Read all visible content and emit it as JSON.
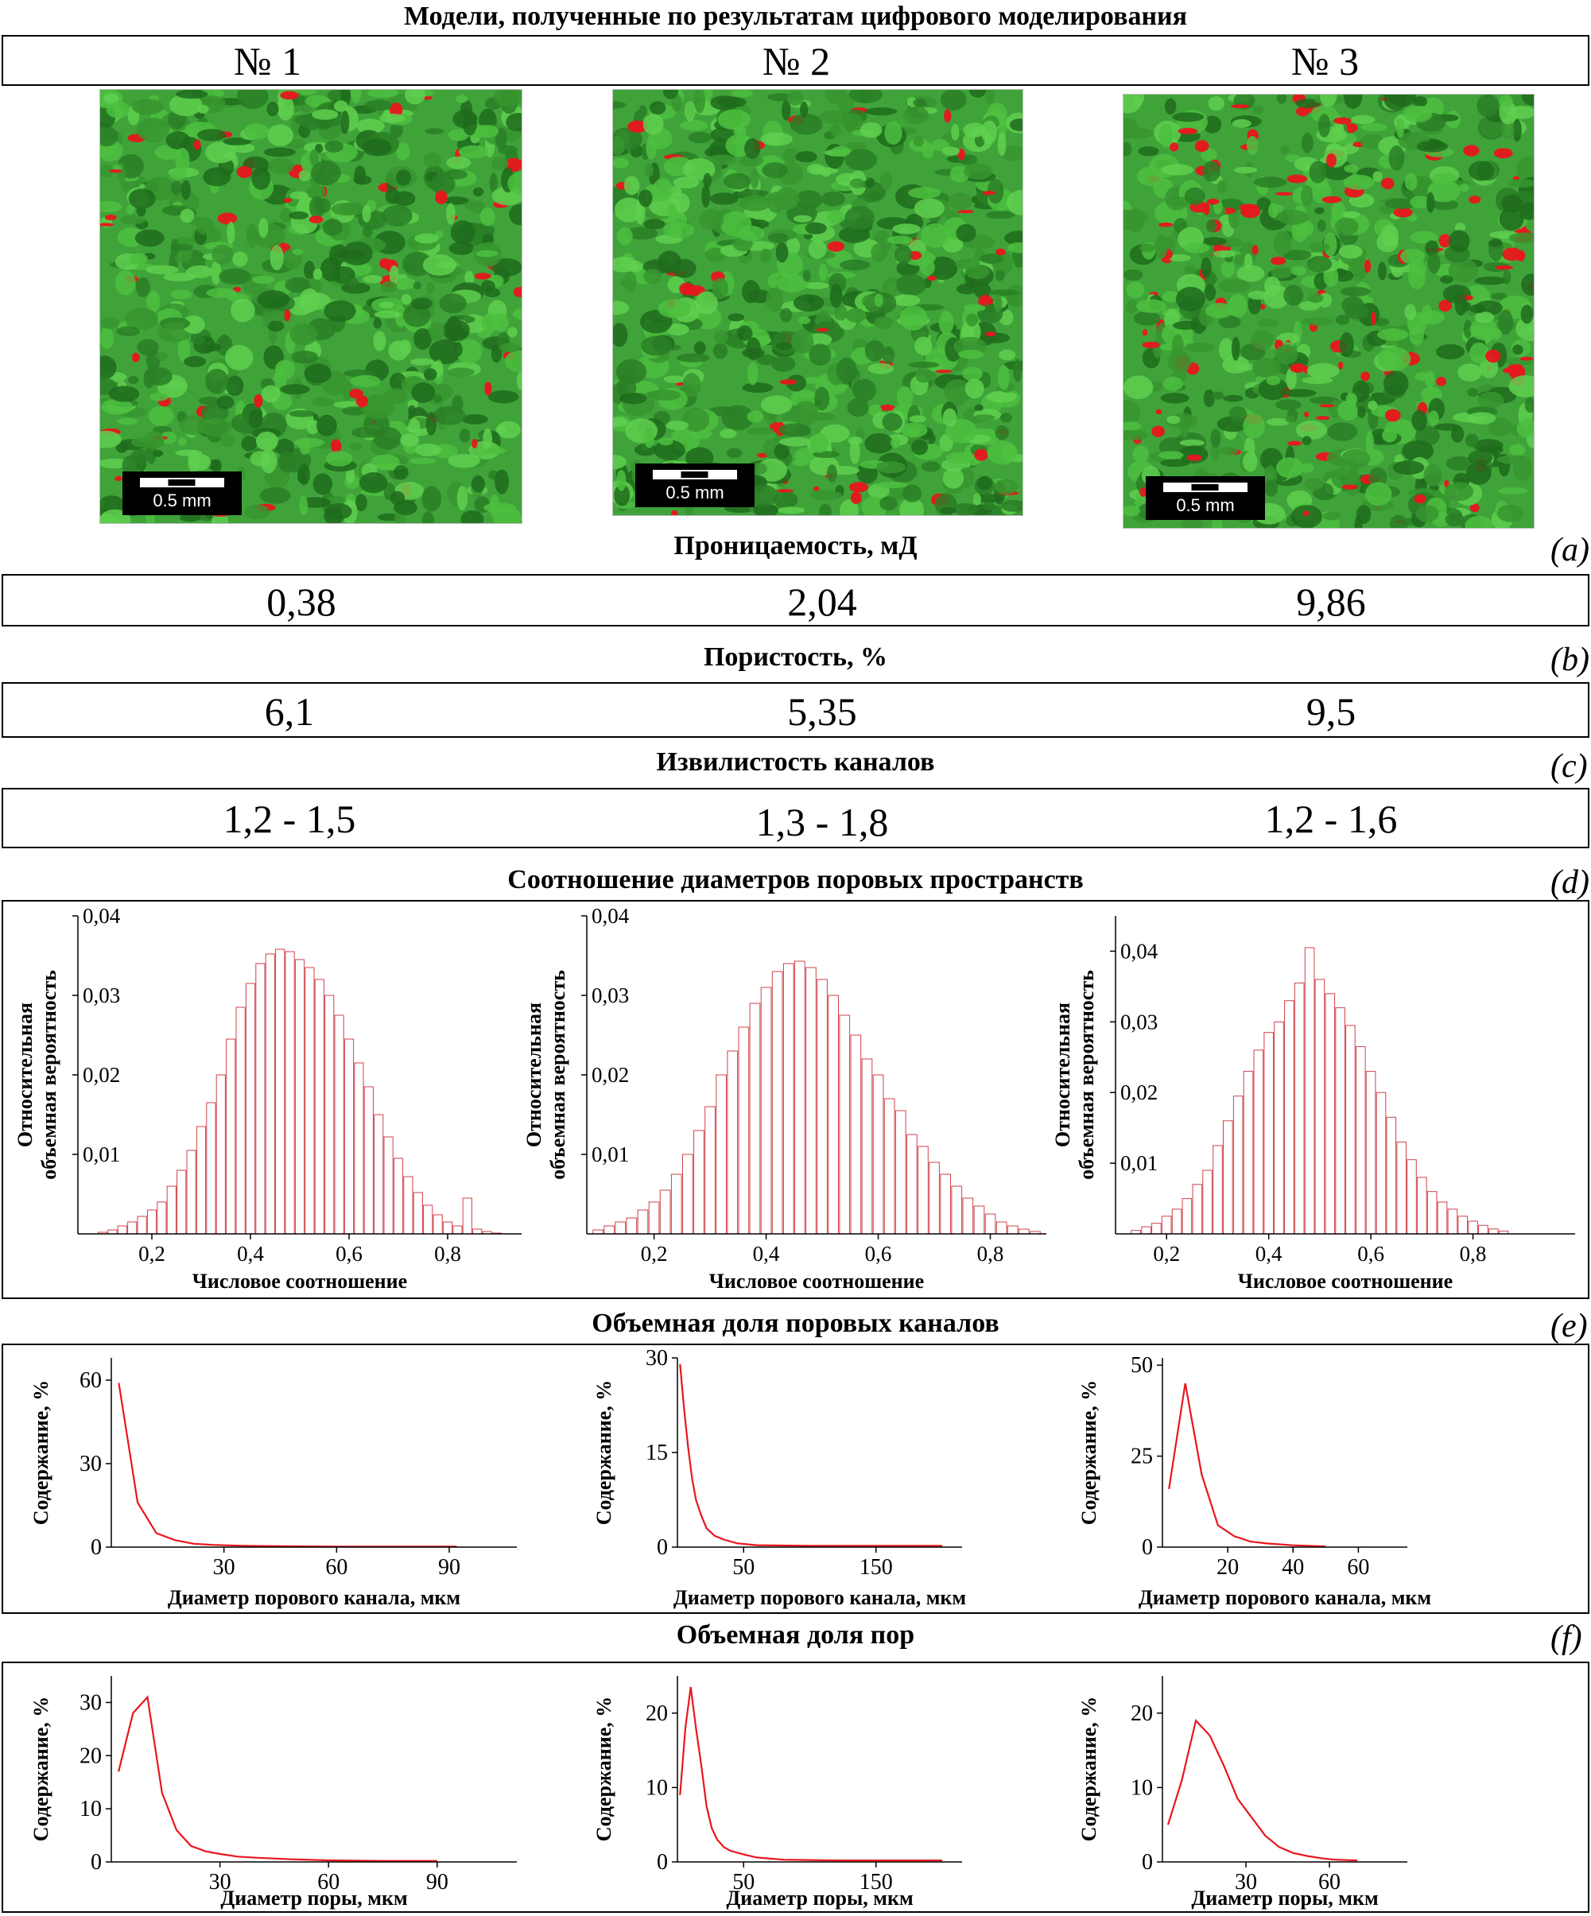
{
  "header": {
    "title": "Модели, полученные по результатам цифрового моделирования",
    "models": [
      "№ 1",
      "№ 2",
      "№ 3"
    ]
  },
  "images": {
    "scale_label": "0.5 mm",
    "colors": {
      "grain": "#3fa33a",
      "pore": "#e8161d"
    }
  },
  "sections": {
    "a": {
      "tag": "(a)",
      "title": "Проницаемость, мД",
      "values": [
        "0,38",
        "2,04",
        "9,86"
      ]
    },
    "b": {
      "tag": "(b)",
      "title": "Пористость, %",
      "values": [
        "6,1",
        "5,35",
        "9,5"
      ]
    },
    "c": {
      "tag": "(c)",
      "title": "Извилистость каналов",
      "values": [
        "1,2 - 1,5",
        "1,3 - 1,8",
        "1,2 - 1,6"
      ]
    },
    "d": {
      "tag": "(d)",
      "title": "Соотношение диаметров поровых пространств"
    },
    "e": {
      "tag": "(e)",
      "title": "Объемная доля поровых каналов"
    },
    "f": {
      "tag": "(f)",
      "title": "Объемная доля пор"
    }
  },
  "chart_data": [
    {
      "type": "bar",
      "group": "d",
      "model": "№ 1",
      "xlabel": "Числовое соотношение",
      "ylabel": [
        "Относительная",
        "объемная вероятность"
      ],
      "xlim": [
        0.05,
        0.95
      ],
      "ylim": [
        0,
        0.04
      ],
      "xticks": [
        0.2,
        0.4,
        0.6,
        0.8
      ],
      "xtick_labels": [
        "0,2",
        "0,4",
        "0,6",
        "0,8"
      ],
      "yticks": [
        0.01,
        0.02,
        0.03,
        0.04
      ],
      "ytick_labels": [
        "0,01",
        "0,02",
        "0,03",
        "0,04"
      ],
      "x": [
        0.1,
        0.12,
        0.14,
        0.16,
        0.18,
        0.2,
        0.22,
        0.24,
        0.26,
        0.28,
        0.3,
        0.32,
        0.34,
        0.36,
        0.38,
        0.4,
        0.42,
        0.44,
        0.46,
        0.48,
        0.5,
        0.52,
        0.54,
        0.56,
        0.58,
        0.6,
        0.62,
        0.64,
        0.66,
        0.68,
        0.7,
        0.72,
        0.74,
        0.76,
        0.78,
        0.8,
        0.82,
        0.84,
        0.86,
        0.88,
        0.9
      ],
      "values": [
        0.0002,
        0.0005,
        0.001,
        0.0015,
        0.0022,
        0.003,
        0.004,
        0.006,
        0.008,
        0.0105,
        0.0135,
        0.0165,
        0.02,
        0.0245,
        0.0285,
        0.0315,
        0.034,
        0.0352,
        0.0358,
        0.0355,
        0.0345,
        0.0335,
        0.032,
        0.03,
        0.0275,
        0.0245,
        0.0215,
        0.0185,
        0.015,
        0.0122,
        0.0095,
        0.0072,
        0.0052,
        0.0036,
        0.0024,
        0.0015,
        0.001,
        0.0045,
        0.0006,
        0.0003,
        0.0001
      ]
    },
    {
      "type": "bar",
      "group": "d",
      "model": "№ 2",
      "xlabel": "Числовое соотношение",
      "ylabel": [
        "Относительная",
        "объемная вероятность"
      ],
      "xlim": [
        0.08,
        0.9
      ],
      "ylim": [
        0,
        0.04
      ],
      "xticks": [
        0.2,
        0.4,
        0.6,
        0.8
      ],
      "xtick_labels": [
        "0,2",
        "0,4",
        "0,6",
        "0,8"
      ],
      "yticks": [
        0.01,
        0.02,
        0.03,
        0.04
      ],
      "ytick_labels": [
        "0,01",
        "0,02",
        "0,03",
        "0,04"
      ],
      "x": [
        0.1,
        0.12,
        0.14,
        0.16,
        0.18,
        0.2,
        0.22,
        0.24,
        0.26,
        0.28,
        0.3,
        0.32,
        0.34,
        0.36,
        0.38,
        0.4,
        0.42,
        0.44,
        0.46,
        0.48,
        0.5,
        0.52,
        0.54,
        0.56,
        0.58,
        0.6,
        0.62,
        0.64,
        0.66,
        0.68,
        0.7,
        0.72,
        0.74,
        0.76,
        0.78,
        0.8,
        0.82,
        0.84,
        0.86,
        0.88
      ],
      "values": [
        0.0005,
        0.001,
        0.0015,
        0.002,
        0.003,
        0.004,
        0.0055,
        0.0075,
        0.01,
        0.013,
        0.016,
        0.02,
        0.023,
        0.026,
        0.029,
        0.031,
        0.033,
        0.034,
        0.0343,
        0.0335,
        0.032,
        0.03,
        0.0275,
        0.025,
        0.022,
        0.02,
        0.017,
        0.0155,
        0.0125,
        0.011,
        0.009,
        0.0075,
        0.006,
        0.0045,
        0.0035,
        0.0025,
        0.0015,
        0.001,
        0.0006,
        0.0003
      ]
    },
    {
      "type": "bar",
      "group": "d",
      "model": "№ 3",
      "xlabel": "Числовое соотношение",
      "ylabel": [
        "Относительная",
        "объемная вероятность"
      ],
      "xlim": [
        0.1,
        1.0
      ],
      "ylim": [
        0,
        0.045
      ],
      "xticks": [
        0.2,
        0.4,
        0.6,
        0.8
      ],
      "xtick_labels": [
        "0,2",
        "0,4",
        "0,6",
        "0,8"
      ],
      "yticks": [
        0.01,
        0.02,
        0.03,
        0.04
      ],
      "ytick_labels": [
        "0,01",
        "0,02",
        "0,03",
        "0,04"
      ],
      "x": [
        0.14,
        0.16,
        0.18,
        0.2,
        0.22,
        0.24,
        0.26,
        0.28,
        0.3,
        0.32,
        0.34,
        0.36,
        0.38,
        0.4,
        0.42,
        0.44,
        0.46,
        0.48,
        0.5,
        0.52,
        0.54,
        0.56,
        0.58,
        0.6,
        0.62,
        0.64,
        0.66,
        0.68,
        0.7,
        0.72,
        0.74,
        0.76,
        0.78,
        0.8,
        0.82,
        0.84,
        0.86
      ],
      "values": [
        0.0005,
        0.001,
        0.0015,
        0.0025,
        0.0035,
        0.005,
        0.007,
        0.009,
        0.0125,
        0.016,
        0.0195,
        0.023,
        0.026,
        0.0285,
        0.03,
        0.033,
        0.0355,
        0.0405,
        0.036,
        0.034,
        0.032,
        0.0295,
        0.0265,
        0.023,
        0.02,
        0.0165,
        0.013,
        0.0105,
        0.008,
        0.006,
        0.0045,
        0.0035,
        0.0025,
        0.0018,
        0.0012,
        0.0007,
        0.0004
      ]
    },
    {
      "type": "line",
      "group": "e",
      "model": "№ 1",
      "xlabel": "Диаметр порового канала, мкм",
      "ylabel": "Содержание, %",
      "xlim": [
        0,
        108
      ],
      "ylim": [
        0,
        68
      ],
      "xticks": [
        30,
        60,
        90
      ],
      "yticks": [
        0,
        30,
        60
      ],
      "x": [
        2,
        7,
        12,
        17,
        22,
        27,
        35,
        45,
        60,
        75,
        92
      ],
      "values": [
        59,
        16,
        5,
        2.5,
        1.2,
        0.8,
        0.5,
        0.3,
        0.2,
        0.2,
        0.2
      ]
    },
    {
      "type": "line",
      "group": "e",
      "model": "№ 2",
      "xlabel": "Диаметр порового канала, мкм",
      "ylabel": "Содержание, %",
      "xlim": [
        0,
        215
      ],
      "ylim": [
        0,
        30
      ],
      "xticks": [
        50,
        150
      ],
      "yticks": [
        0,
        15,
        30
      ],
      "x": [
        2,
        5,
        8,
        11,
        14,
        18,
        22,
        28,
        35,
        45,
        60,
        100,
        150,
        200
      ],
      "values": [
        29,
        22,
        16,
        11,
        7.5,
        5,
        3,
        1.8,
        1.2,
        0.6,
        0.3,
        0.2,
        0.2,
        0.2
      ]
    },
    {
      "type": "line",
      "group": "e",
      "model": "№ 3",
      "xlabel": "Диаметр порового канала, мкм",
      "ylabel": "Содержание, %",
      "xlim": [
        0,
        75
      ],
      "ylim": [
        0,
        52
      ],
      "xticks": [
        20,
        40,
        60
      ],
      "yticks": [
        0,
        25,
        50
      ],
      "x": [
        2,
        7,
        12,
        17,
        22,
        27,
        32,
        40,
        50
      ],
      "values": [
        16,
        45,
        20,
        6,
        3,
        1.5,
        1,
        0.5,
        0.2
      ]
    },
    {
      "type": "line",
      "group": "f",
      "model": "№ 1",
      "xlabel": "Диаметр поры, мкм",
      "ylabel": "Содержание, %",
      "xlim": [
        0,
        112
      ],
      "ylim": [
        0,
        35
      ],
      "xticks": [
        30,
        60,
        90
      ],
      "yticks": [
        0,
        10,
        20,
        30
      ],
      "x": [
        2,
        6,
        10,
        14,
        18,
        22,
        26,
        30,
        35,
        40,
        50,
        60,
        75,
        90
      ],
      "values": [
        17,
        28,
        31,
        13,
        6,
        3,
        2,
        1.5,
        1,
        0.8,
        0.5,
        0.3,
        0.2,
        0.2
      ]
    },
    {
      "type": "line",
      "group": "f",
      "model": "№ 2",
      "xlabel": "Диаметр поры, мкм",
      "ylabel": "Содержание, %",
      "xlim": [
        0,
        215
      ],
      "ylim": [
        0,
        25
      ],
      "xticks": [
        50,
        150
      ],
      "yticks": [
        0,
        10,
        20
      ],
      "x": [
        2,
        6,
        10,
        14,
        18,
        22,
        26,
        30,
        35,
        40,
        50,
        60,
        80,
        120,
        160,
        200
      ],
      "values": [
        9,
        18,
        23.5,
        18,
        13,
        7.5,
        4.5,
        3,
        2,
        1.5,
        1,
        0.6,
        0.3,
        0.2,
        0.2,
        0.2
      ]
    },
    {
      "type": "line",
      "group": "f",
      "model": "№ 3",
      "xlabel": "Диаметр поры, мкм",
      "ylabel": "Содержание, %",
      "xlim": [
        0,
        88
      ],
      "ylim": [
        0,
        25
      ],
      "xticks": [
        30,
        60
      ],
      "yticks": [
        0,
        10,
        20
      ],
      "x": [
        2,
        7,
        12,
        17,
        22,
        27,
        32,
        37,
        42,
        47,
        52,
        57,
        62,
        70
      ],
      "values": [
        5,
        11,
        19,
        17,
        13,
        8.5,
        6,
        3.5,
        2,
        1.2,
        0.8,
        0.5,
        0.3,
        0.2
      ]
    }
  ]
}
